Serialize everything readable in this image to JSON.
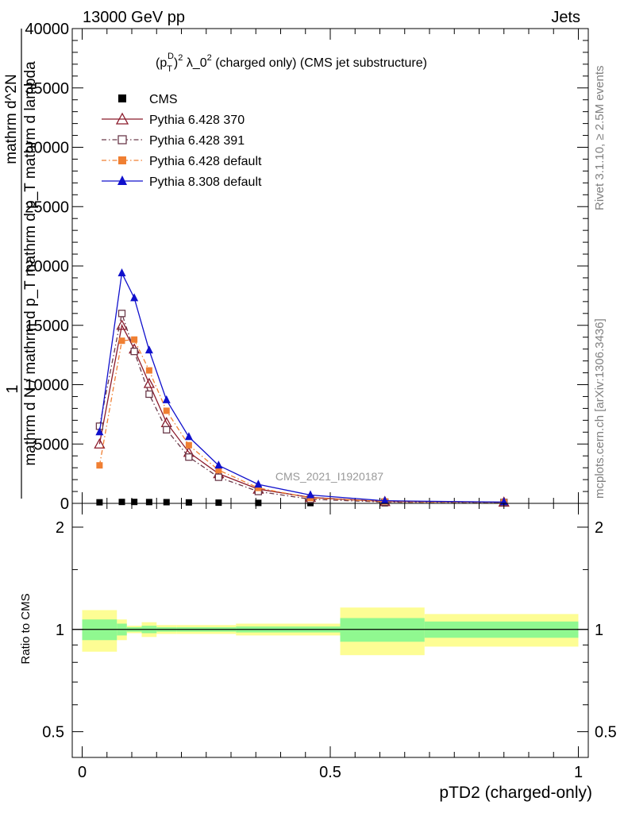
{
  "header": {
    "energy_label": "13000 GeV pp",
    "category_label": "Jets",
    "rivet_label": "Rivet 3.1.10, ≥ 2.5M events",
    "mcplots_label": "mcplots.cern.ch [arXiv:1306.3436]",
    "watermark": "CMS_2021_I1920187"
  },
  "chart_data": [
    {
      "type": "line",
      "title": "(p_T^D)^2 λ_0^2 (charged only) (CMS jet substructure)",
      "title_parts": {
        "p": "(p",
        "sub": "T",
        "sup1": "D",
        "mid": ")",
        "sup2": "2",
        "rest1": " λ_0",
        "sup3": "2",
        "rest2": " (charged only) (CMS jet substructure)"
      },
      "ylabel_parts": {
        "one": "1",
        "numer": "mathrm d^2N",
        "denom": "mathrm d N / mathrm d p_T mathrm d p_T mathrm d lambda"
      },
      "xlim": [
        -0.02,
        1.02
      ],
      "ylim": [
        0,
        40000
      ],
      "yticks": [
        0,
        5000,
        10000,
        15000,
        20000,
        25000,
        30000,
        35000,
        40000
      ],
      "ytick_labels": [
        "0",
        "5000",
        "10000",
        "15000",
        "20000",
        "25000",
        "30000",
        "35000",
        "40000"
      ],
      "legend_position": "top-left",
      "x": [
        0.035,
        0.08,
        0.105,
        0.135,
        0.17,
        0.215,
        0.275,
        0.355,
        0.46,
        0.61,
        0.85
      ],
      "series": [
        {
          "name": "CMS",
          "color": "#000000",
          "marker": "square-filled",
          "dash": "none",
          "values": [
            90,
            120,
            120,
            110,
            100,
            80,
            60,
            40,
            25,
            12,
            5
          ]
        },
        {
          "name": "Pythia 6.428 370",
          "color": "#8b1a2b",
          "marker": "triangle-open",
          "dash": "solid",
          "values": [
            5000,
            15000,
            13000,
            10100,
            6800,
            4300,
            2500,
            1200,
            500,
            150,
            100
          ]
        },
        {
          "name": "Pythia 6.428 391",
          "color": "#6b3a4a",
          "marker": "square-open",
          "dash": "dashdot",
          "values": [
            6500,
            16000,
            12800,
            9200,
            6200,
            3900,
            2200,
            1000,
            350,
            100,
            80
          ]
        },
        {
          "name": "Pythia 6.428 default",
          "color": "#f07f32",
          "marker": "square-filled",
          "dash": "dashdot",
          "values": [
            3200,
            13700,
            13800,
            11200,
            7800,
            4900,
            2800,
            1300,
            450,
            160,
            90
          ]
        },
        {
          "name": "Pythia 8.308 default",
          "color": "#1010cc",
          "marker": "triangle-filled",
          "dash": "solid",
          "values": [
            6000,
            19400,
            17300,
            12900,
            8700,
            5600,
            3200,
            1600,
            700,
            220,
            110
          ]
        }
      ]
    },
    {
      "type": "area",
      "ylabel": "Ratio to CMS",
      "xlabel": "pTD2 (charged-only)",
      "xlim": [
        -0.02,
        1.02
      ],
      "ylim": [
        0.42,
        2.35
      ],
      "log_scale_y": true,
      "yticks": [
        0.5,
        1,
        2
      ],
      "ytick_labels": [
        "0.5",
        "1",
        "2"
      ],
      "xticks": [
        0,
        0.5,
        1
      ],
      "xtick_labels": [
        "0",
        "0.5",
        "1"
      ],
      "reference_line": 1,
      "bins": [
        {
          "x0": 0.0,
          "x1": 0.07,
          "inner": [
            0.93,
            1.07
          ],
          "outer": [
            0.86,
            1.14
          ]
        },
        {
          "x0": 0.07,
          "x1": 0.09,
          "inner": [
            0.96,
            1.04
          ],
          "outer": [
            0.93,
            1.07
          ]
        },
        {
          "x0": 0.09,
          "x1": 0.12,
          "inner": [
            0.985,
            1.015
          ],
          "outer": [
            0.975,
            1.025
          ]
        },
        {
          "x0": 0.12,
          "x1": 0.15,
          "inner": [
            0.975,
            1.025
          ],
          "outer": [
            0.95,
            1.05
          ]
        },
        {
          "x0": 0.15,
          "x1": 0.19,
          "inner": [
            0.985,
            1.015
          ],
          "outer": [
            0.97,
            1.03
          ]
        },
        {
          "x0": 0.19,
          "x1": 0.31,
          "inner": [
            0.985,
            1.015
          ],
          "outer": [
            0.97,
            1.03
          ]
        },
        {
          "x0": 0.31,
          "x1": 0.52,
          "inner": [
            0.98,
            1.02
          ],
          "outer": [
            0.96,
            1.04
          ]
        },
        {
          "x0": 0.52,
          "x1": 0.69,
          "inner": [
            0.92,
            1.08
          ],
          "outer": [
            0.84,
            1.16
          ]
        },
        {
          "x0": 0.69,
          "x1": 1.0,
          "inner": [
            0.945,
            1.055
          ],
          "outer": [
            0.89,
            1.11
          ]
        }
      ],
      "band_colors": {
        "inner": "#90f890",
        "outer": "#fdfd94"
      }
    }
  ]
}
